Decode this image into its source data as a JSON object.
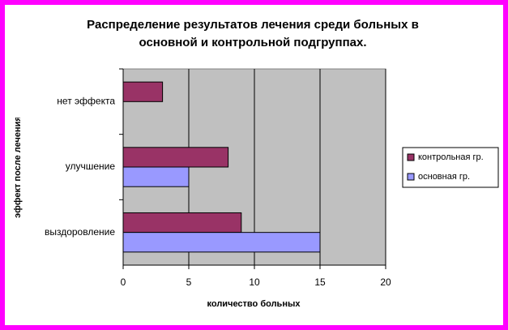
{
  "chart_data": {
    "type": "hbar",
    "title": [
      "Распределение результатов лечения среди больных в",
      "основной и контрольной подгруппах."
    ],
    "x_label": "количество больных",
    "y_label": "эффект после лечения",
    "categories": [
      "выздоровление",
      "улучшение",
      "нет эффекта"
    ],
    "series": [
      {
        "name": "контрольная гр.",
        "color": "#993366",
        "values": [
          9,
          8,
          3
        ]
      },
      {
        "name": "основная гр.",
        "color": "#9999ff",
        "values": [
          15,
          5,
          0
        ]
      }
    ],
    "xlim": [
      0,
      20
    ],
    "xticks": [
      0,
      5,
      10,
      15,
      20
    ],
    "grid": true,
    "legend": "right"
  }
}
